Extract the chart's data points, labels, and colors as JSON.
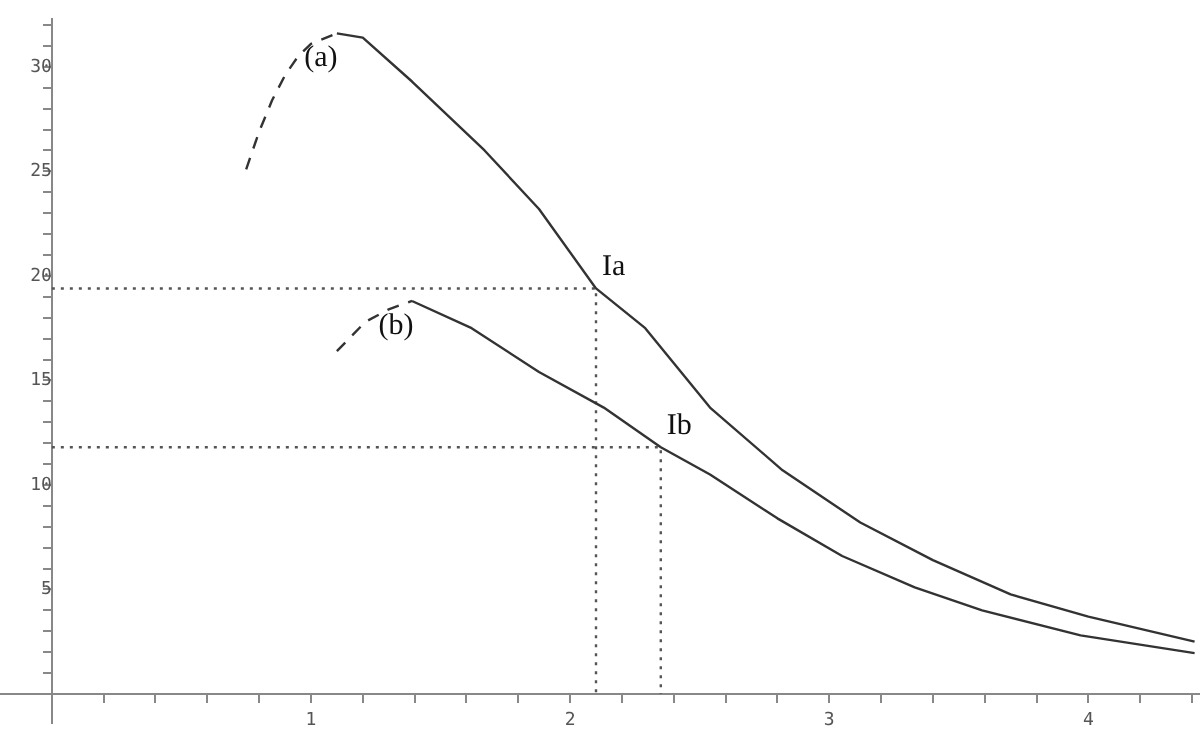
{
  "chart_data": {
    "type": "line",
    "xlim": [
      -0.2,
      4.43
    ],
    "ylim": [
      -1.4,
      32.3
    ],
    "xticks": [
      {
        "value": 0.2,
        "label": null
      },
      {
        "value": 0.4,
        "label": null
      },
      {
        "value": 0.6,
        "label": null
      },
      {
        "value": 0.8,
        "label": null
      },
      1,
      {
        "value": 1.2,
        "label": null
      },
      {
        "value": 1.4,
        "label": null
      },
      {
        "value": 1.6,
        "label": null
      },
      {
        "value": 1.8,
        "label": null
      },
      2,
      {
        "value": 2.2,
        "label": null
      },
      {
        "value": 2.4,
        "label": null
      },
      {
        "value": 2.6,
        "label": null
      },
      {
        "value": 2.8,
        "label": null
      },
      3,
      {
        "value": 3.2,
        "label": null
      },
      {
        "value": 3.4,
        "label": null
      },
      {
        "value": 3.6,
        "label": null
      },
      {
        "value": 3.8,
        "label": null
      },
      4,
      {
        "value": 4.2,
        "label": null
      },
      {
        "value": 4.4,
        "label": null
      }
    ],
    "yticks": [
      {
        "value": 1,
        "label": null
      },
      {
        "value": 2,
        "label": null
      },
      {
        "value": 3,
        "label": null
      },
      {
        "value": 4,
        "label": null
      },
      5,
      {
        "value": 6,
        "label": null
      },
      {
        "value": 7,
        "label": null
      },
      {
        "value": 8,
        "label": null
      },
      {
        "value": 9,
        "label": null
      },
      10,
      {
        "value": 11,
        "label": null
      },
      {
        "value": 12,
        "label": null
      },
      {
        "value": 13,
        "label": null
      },
      {
        "value": 14,
        "label": null
      },
      15,
      {
        "value": 16,
        "label": null
      },
      {
        "value": 17,
        "label": null
      },
      {
        "value": 18,
        "label": null
      },
      {
        "value": 19,
        "label": null
      },
      20,
      {
        "value": 21,
        "label": null
      },
      {
        "value": 22,
        "label": null
      },
      {
        "value": 23,
        "label": null
      },
      {
        "value": 24,
        "label": null
      },
      25,
      {
        "value": 26,
        "label": null
      },
      {
        "value": 27,
        "label": null
      },
      {
        "value": 28,
        "label": null
      },
      {
        "value": 29,
        "label": null
      },
      30,
      {
        "value": 31,
        "label": null
      },
      {
        "value": 32,
        "label": null
      }
    ],
    "marker": "none",
    "grid": false,
    "legend": false,
    "series": [
      {
        "color": "#333333",
        "line_style": "dashed",
        "x": [
          0.75,
          0.8,
          0.85,
          0.9,
          0.95,
          1.0,
          1.1
        ],
        "values": [
          25.1,
          26.9,
          28.4,
          29.6,
          30.5,
          31.1,
          31.6
        ]
      },
      {
        "color": "#333333",
        "line_style": "solid",
        "x": [
          1.1,
          1.2,
          1.39,
          1.67,
          1.88,
          2.1,
          2.29,
          2.54,
          2.82,
          3.12,
          3.4,
          3.7,
          4.0,
          4.41
        ],
        "values": [
          31.6,
          31.4,
          29.3,
          26.0,
          23.2,
          19.4,
          17.5,
          13.7,
          10.7,
          8.2,
          6.4,
          4.76,
          3.7,
          2.5
        ]
      },
      {
        "color": "#333333",
        "line_style": "dashed",
        "x": [
          1.1,
          1.21,
          1.3,
          1.39
        ],
        "values": [
          16.4,
          17.8,
          18.4,
          18.8
        ]
      },
      {
        "color": "#333333",
        "line_style": "solid",
        "x": [
          1.39,
          1.62,
          1.88,
          2.13,
          2.35,
          2.54,
          2.8,
          3.05,
          3.33,
          3.59,
          3.97,
          4.41
        ],
        "values": [
          18.8,
          17.5,
          15.4,
          13.7,
          11.8,
          10.5,
          8.4,
          6.6,
          5.1,
          4.0,
          2.8,
          1.95
        ]
      },
      {
        "color": "#555555",
        "line_style": "dotted",
        "x": [
          0,
          2.1,
          2.1
        ],
        "values": [
          19.4,
          19.4,
          0
        ]
      },
      {
        "color": "#555555",
        "line_style": "dotted",
        "x": [
          0,
          2.35,
          2.35
        ],
        "values": [
          11.8,
          11.8,
          0
        ]
      }
    ],
    "annotations": [
      {
        "text": "(a)",
        "x": 1.1,
        "y": 31.6
      },
      {
        "text": "(b)",
        "x": 1.39,
        "y": 18.8
      },
      {
        "text": "Ia",
        "x": 2.1,
        "y": 19.4
      },
      {
        "text": "Ib",
        "x": 2.35,
        "y": 11.8
      }
    ]
  }
}
